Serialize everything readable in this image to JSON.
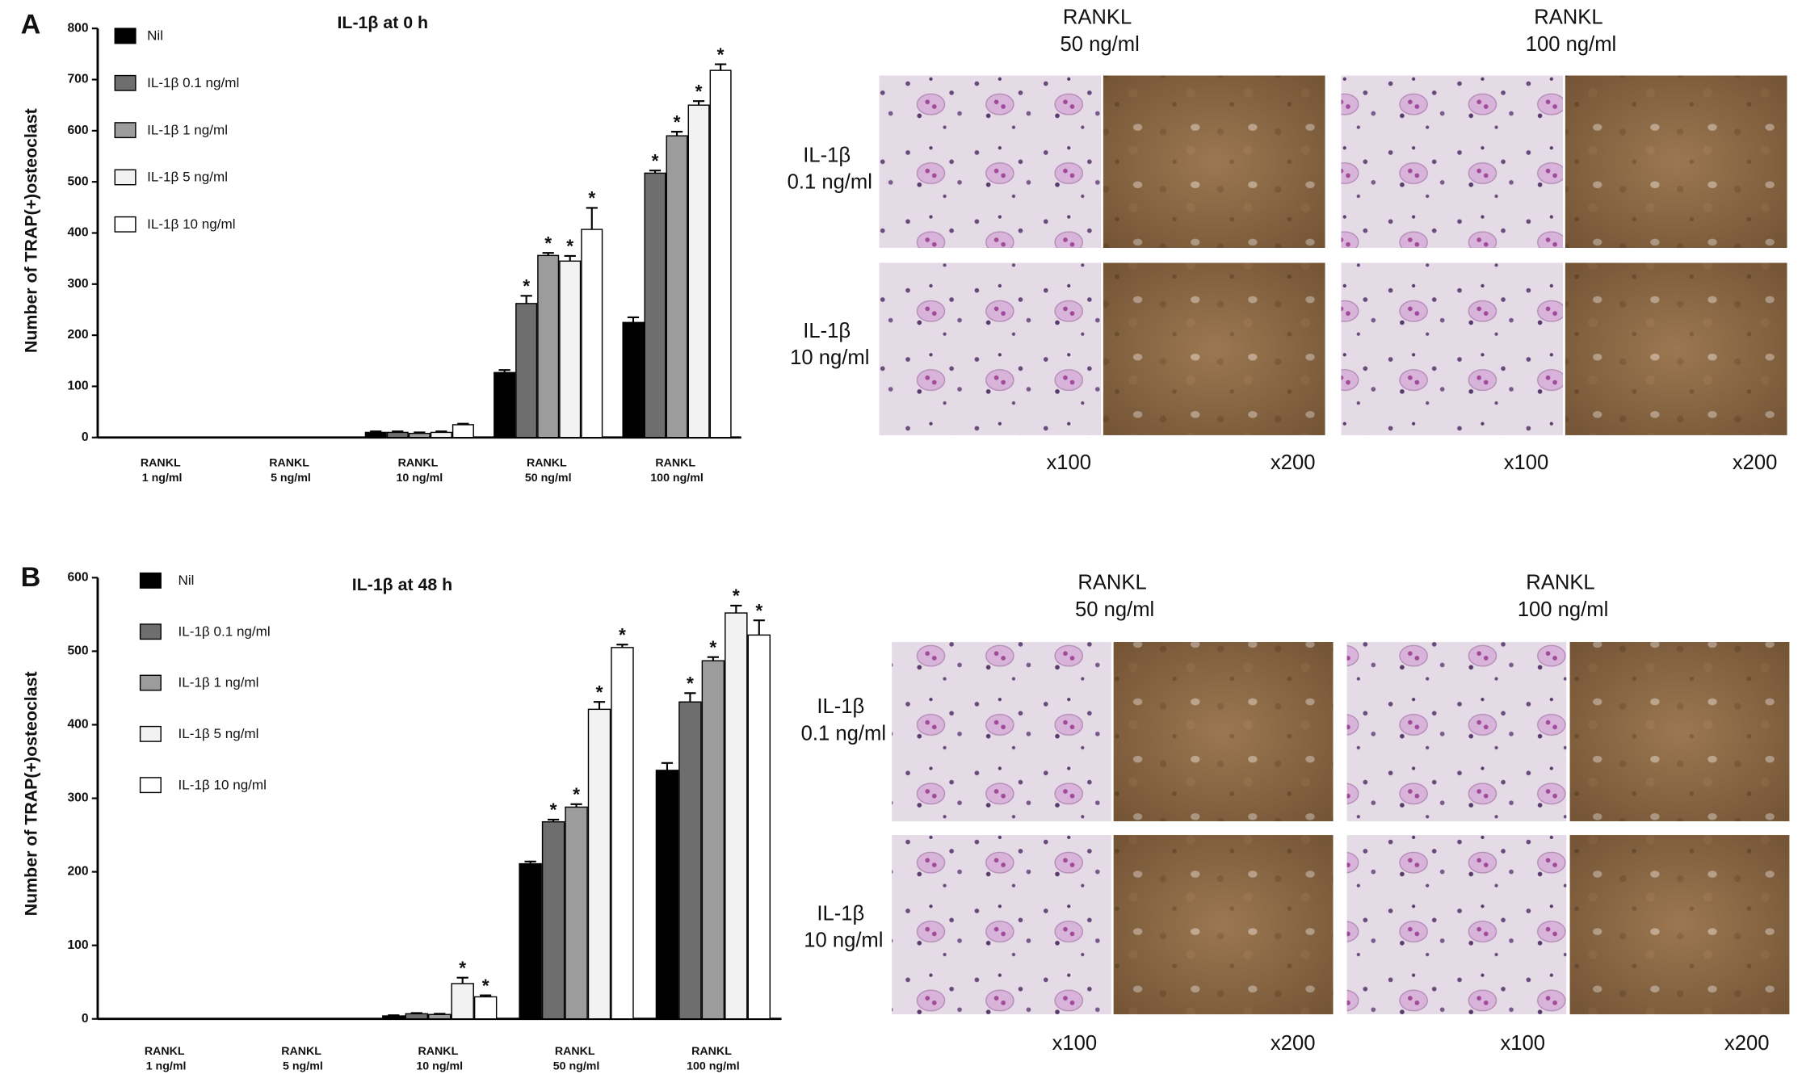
{
  "chart_data": [
    {
      "type": "bar",
      "panel": "A",
      "title": "IL-1β at 0 h",
      "y_label": "Number of TRAP(+)osteoclast",
      "categories": [
        "RANKL 1 ng/ml",
        "RANKL 5 ng/ml",
        "RANKL 10 ng/ml",
        "RANKL 50 ng/ml",
        "RANKL 100 ng/ml"
      ],
      "ylim": [
        0,
        800
      ],
      "yticks": [
        0,
        100,
        200,
        300,
        400,
        500,
        600,
        700,
        800
      ],
      "series": [
        {
          "name": "Nil",
          "color": "#000000",
          "values": [
            0,
            0,
            10,
            127,
            225
          ],
          "errors": [
            0,
            0,
            2,
            5,
            10
          ],
          "significance": [
            null,
            null,
            null,
            null,
            null
          ]
        },
        {
          "name": "IL-1β 0.1 ng/ml",
          "color": "#6e6e6e",
          "values": [
            0,
            0,
            10,
            262,
            517
          ],
          "errors": [
            0,
            0,
            2,
            15,
            5
          ],
          "significance": [
            null,
            null,
            null,
            "*",
            "*"
          ]
        },
        {
          "name": "IL-1β 1 ng/ml",
          "color": "#9c9c9c",
          "values": [
            0,
            0,
            8,
            356,
            590
          ],
          "errors": [
            0,
            0,
            2,
            5,
            8
          ],
          "significance": [
            null,
            null,
            null,
            "*",
            "*"
          ]
        },
        {
          "name": "IL-1β 5 ng/ml",
          "color": "#f2f2f2",
          "values": [
            0,
            0,
            10,
            345,
            650
          ],
          "errors": [
            0,
            0,
            2,
            10,
            8
          ],
          "significance": [
            null,
            null,
            null,
            "*",
            "*"
          ]
        },
        {
          "name": "IL-1β 10 ng/ml",
          "color": "#ffffff",
          "values": [
            0,
            0,
            25,
            407,
            718
          ],
          "errors": [
            0,
            0,
            2,
            42,
            12
          ],
          "significance": [
            null,
            null,
            null,
            "*",
            "*"
          ]
        }
      ]
    },
    {
      "type": "bar",
      "panel": "B",
      "title": "IL-1β at 48 h",
      "y_label": "Number of TRAP(+)osteoclast",
      "categories": [
        "RANKL 1 ng/ml",
        "RANKL 5 ng/ml",
        "RANKL 10 ng/ml",
        "RANKL 50 ng/ml",
        "RANKL 100 ng/ml"
      ],
      "ylim": [
        0,
        600
      ],
      "yticks": [
        0,
        100,
        200,
        300,
        400,
        500,
        600
      ],
      "series": [
        {
          "name": "Nil",
          "color": "#000000",
          "values": [
            0,
            0,
            4,
            211,
            338
          ],
          "errors": [
            0,
            0,
            1,
            3,
            10
          ],
          "significance": [
            null,
            null,
            null,
            null,
            null
          ]
        },
        {
          "name": "IL-1β 0.1 ng/ml",
          "color": "#6e6e6e",
          "values": [
            0,
            0,
            7,
            268,
            431
          ],
          "errors": [
            0,
            0,
            1,
            3,
            12
          ],
          "significance": [
            null,
            null,
            null,
            "*",
            "*"
          ]
        },
        {
          "name": "IL-1β 1 ng/ml",
          "color": "#9c9c9c",
          "values": [
            0,
            0,
            6,
            288,
            487
          ],
          "errors": [
            0,
            0,
            1,
            4,
            5
          ],
          "significance": [
            null,
            null,
            null,
            "*",
            "*"
          ]
        },
        {
          "name": "IL-1β 5 ng/ml",
          "color": "#f2f2f2",
          "values": [
            0,
            0,
            48,
            421,
            552
          ],
          "errors": [
            0,
            0,
            8,
            10,
            10
          ],
          "significance": [
            null,
            null,
            "*",
            "*",
            "*"
          ]
        },
        {
          "name": "IL-1β 10 ng/ml",
          "color": "#ffffff",
          "values": [
            0,
            0,
            30,
            505,
            522
          ],
          "errors": [
            0,
            0,
            2,
            4,
            20
          ],
          "significance": [
            null,
            null,
            "*",
            "*",
            "*"
          ]
        }
      ]
    }
  ],
  "micrographs": [
    {
      "columns": [
        "RANKL 50 ng/ml",
        "RANKL 100 ng/ml"
      ],
      "rows": [
        "IL-1β 0.1 ng/ml",
        "IL-1β 10 ng/ml"
      ],
      "magnifications": [
        "x100",
        "x200",
        "x100",
        "x200"
      ]
    },
    {
      "columns": [
        "RANKL 50 ng/ml",
        "RANKL 100 ng/ml"
      ],
      "rows": [
        "IL-1β 0.1 ng/ml",
        "IL-1β 10 ng/ml"
      ],
      "magnifications": [
        "x100",
        "x200",
        "x100",
        "x200"
      ]
    }
  ]
}
